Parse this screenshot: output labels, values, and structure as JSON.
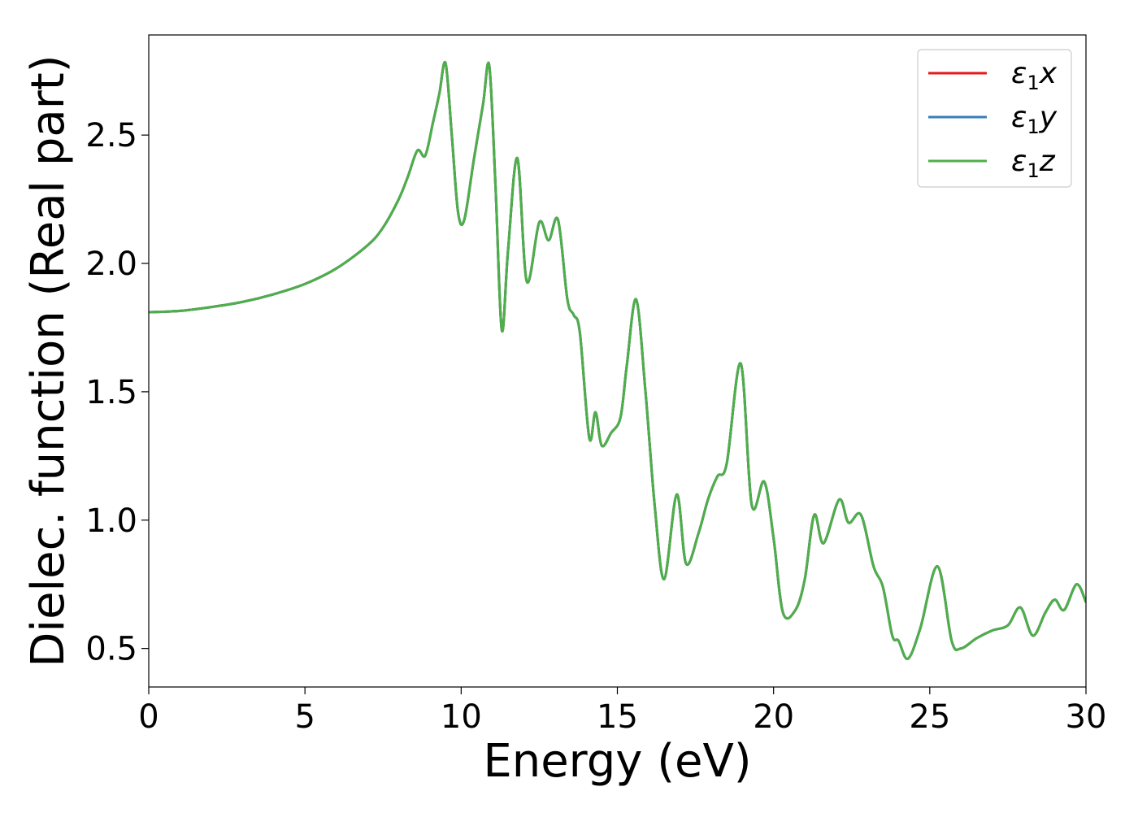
{
  "chart_data": {
    "type": "line",
    "title": "",
    "xlabel": "Energy (eV)",
    "ylabel": "Dielec. function (Real part)",
    "xlim": [
      0,
      30
    ],
    "ylim": [
      0.35,
      2.89
    ],
    "xticks": [
      0,
      5,
      10,
      15,
      20,
      25,
      30
    ],
    "xtick_labels": [
      "0",
      "5",
      "10",
      "15",
      "20",
      "25",
      "30"
    ],
    "yticks": [
      0.5,
      1.0,
      1.5,
      2.0,
      2.5
    ],
    "ytick_labels": [
      "0.5",
      "1.0",
      "1.5",
      "2.0",
      "2.5"
    ],
    "grid": false,
    "legend_position": "top-right",
    "series": [
      {
        "name": "ε1x",
        "legend_base": "ε",
        "legend_sub": "1",
        "legend_var": "x",
        "color": "#e41a1c",
        "x": [
          0,
          1,
          2,
          3,
          4,
          5,
          6,
          7,
          7.5,
          8,
          8.3,
          8.6,
          8.85,
          9.1,
          9.3,
          9.5,
          9.7,
          9.9,
          10.1,
          10.4,
          10.7,
          10.9,
          11.1,
          11.3,
          11.5,
          11.8,
          12.1,
          12.5,
          12.8,
          13.1,
          13.4,
          13.6,
          13.8,
          14.1,
          14.3,
          14.5,
          14.8,
          15.1,
          15.3,
          15.6,
          15.9,
          16.2,
          16.5,
          16.9,
          17.2,
          17.6,
          17.9,
          18.2,
          18.5,
          18.95,
          19.3,
          19.7,
          20.0,
          20.3,
          20.7,
          21.0,
          21.3,
          21.6,
          22.1,
          22.4,
          22.8,
          23.2,
          23.5,
          23.8,
          24.0,
          24.3,
          24.7,
          25.25,
          25.7,
          26.0,
          26.5,
          27.0,
          27.5,
          27.9,
          28.3,
          28.7,
          29.0,
          29.3,
          29.7,
          30.0
        ],
        "y": [
          1.81,
          1.815,
          1.83,
          1.85,
          1.88,
          1.92,
          1.98,
          2.07,
          2.14,
          2.25,
          2.34,
          2.44,
          2.42,
          2.55,
          2.66,
          2.78,
          2.5,
          2.2,
          2.17,
          2.4,
          2.62,
          2.77,
          2.3,
          1.74,
          2.05,
          2.41,
          1.93,
          2.16,
          2.09,
          2.17,
          1.86,
          1.8,
          1.73,
          1.32,
          1.42,
          1.29,
          1.34,
          1.4,
          1.6,
          1.86,
          1.5,
          1.05,
          0.77,
          1.1,
          0.83,
          0.95,
          1.08,
          1.17,
          1.22,
          1.61,
          1.06,
          1.15,
          0.93,
          0.64,
          0.65,
          0.77,
          1.02,
          0.91,
          1.08,
          0.99,
          1.02,
          0.82,
          0.74,
          0.55,
          0.53,
          0.46,
          0.58,
          0.82,
          0.53,
          0.5,
          0.54,
          0.57,
          0.59,
          0.66,
          0.55,
          0.64,
          0.69,
          0.65,
          0.75,
          0.68
        ]
      },
      {
        "name": "ε1y",
        "legend_base": "ε",
        "legend_sub": "1",
        "legend_var": "y",
        "color": "#377eb8",
        "x": [
          0,
          1,
          2,
          3,
          4,
          5,
          6,
          7,
          7.5,
          8,
          8.3,
          8.6,
          8.85,
          9.1,
          9.3,
          9.5,
          9.7,
          9.9,
          10.1,
          10.4,
          10.7,
          10.9,
          11.1,
          11.3,
          11.5,
          11.8,
          12.1,
          12.5,
          12.8,
          13.1,
          13.4,
          13.6,
          13.8,
          14.1,
          14.3,
          14.5,
          14.8,
          15.1,
          15.3,
          15.6,
          15.9,
          16.2,
          16.5,
          16.9,
          17.2,
          17.6,
          17.9,
          18.2,
          18.5,
          18.95,
          19.3,
          19.7,
          20.0,
          20.3,
          20.7,
          21.0,
          21.3,
          21.6,
          22.1,
          22.4,
          22.8,
          23.2,
          23.5,
          23.8,
          24.0,
          24.3,
          24.7,
          25.25,
          25.7,
          26.0,
          26.5,
          27.0,
          27.5,
          27.9,
          28.3,
          28.7,
          29.0,
          29.3,
          29.7,
          30.0
        ],
        "y": [
          1.81,
          1.815,
          1.83,
          1.85,
          1.88,
          1.92,
          1.98,
          2.07,
          2.14,
          2.25,
          2.34,
          2.44,
          2.42,
          2.55,
          2.66,
          2.78,
          2.5,
          2.2,
          2.17,
          2.4,
          2.62,
          2.77,
          2.3,
          1.74,
          2.05,
          2.41,
          1.93,
          2.16,
          2.09,
          2.17,
          1.86,
          1.8,
          1.73,
          1.32,
          1.42,
          1.29,
          1.34,
          1.4,
          1.6,
          1.86,
          1.5,
          1.05,
          0.77,
          1.1,
          0.83,
          0.95,
          1.08,
          1.17,
          1.22,
          1.61,
          1.06,
          1.15,
          0.93,
          0.64,
          0.65,
          0.77,
          1.02,
          0.91,
          1.08,
          0.99,
          1.02,
          0.82,
          0.74,
          0.55,
          0.53,
          0.46,
          0.58,
          0.82,
          0.53,
          0.5,
          0.54,
          0.57,
          0.59,
          0.66,
          0.55,
          0.64,
          0.69,
          0.65,
          0.75,
          0.68
        ]
      },
      {
        "name": "ε1z",
        "legend_base": "ε",
        "legend_sub": "1",
        "legend_var": "z",
        "color": "#4daf4a",
        "x": [
          0,
          1,
          2,
          3,
          4,
          5,
          6,
          7,
          7.5,
          8,
          8.3,
          8.6,
          8.85,
          9.1,
          9.3,
          9.5,
          9.7,
          9.9,
          10.1,
          10.4,
          10.7,
          10.9,
          11.1,
          11.3,
          11.5,
          11.8,
          12.1,
          12.5,
          12.8,
          13.1,
          13.4,
          13.6,
          13.8,
          14.1,
          14.3,
          14.5,
          14.8,
          15.1,
          15.3,
          15.6,
          15.9,
          16.2,
          16.5,
          16.9,
          17.2,
          17.6,
          17.9,
          18.2,
          18.5,
          18.95,
          19.3,
          19.7,
          20.0,
          20.3,
          20.7,
          21.0,
          21.3,
          21.6,
          22.1,
          22.4,
          22.8,
          23.2,
          23.5,
          23.8,
          24.0,
          24.3,
          24.7,
          25.25,
          25.7,
          26.0,
          26.5,
          27.0,
          27.5,
          27.9,
          28.3,
          28.7,
          29.0,
          29.3,
          29.7,
          30.0
        ],
        "y": [
          1.81,
          1.815,
          1.83,
          1.85,
          1.88,
          1.92,
          1.98,
          2.07,
          2.14,
          2.25,
          2.34,
          2.44,
          2.42,
          2.55,
          2.66,
          2.78,
          2.5,
          2.2,
          2.17,
          2.4,
          2.62,
          2.77,
          2.3,
          1.74,
          2.05,
          2.41,
          1.93,
          2.16,
          2.09,
          2.17,
          1.86,
          1.8,
          1.73,
          1.32,
          1.42,
          1.29,
          1.34,
          1.4,
          1.6,
          1.86,
          1.5,
          1.05,
          0.77,
          1.1,
          0.83,
          0.95,
          1.08,
          1.17,
          1.22,
          1.61,
          1.06,
          1.15,
          0.93,
          0.64,
          0.65,
          0.77,
          1.02,
          0.91,
          1.08,
          0.99,
          1.02,
          0.82,
          0.74,
          0.55,
          0.53,
          0.46,
          0.58,
          0.82,
          0.53,
          0.5,
          0.54,
          0.57,
          0.59,
          0.66,
          0.55,
          0.64,
          0.69,
          0.65,
          0.75,
          0.68
        ]
      }
    ]
  }
}
